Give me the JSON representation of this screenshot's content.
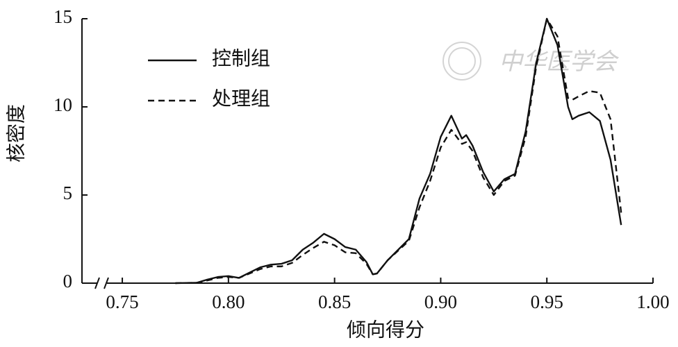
{
  "chart_data": {
    "type": "line",
    "watermark": "中华医学会",
    "x_label": "倾向得分",
    "y_label": "核密度",
    "x": [
      0.775,
      0.785,
      0.79,
      0.795,
      0.8,
      0.805,
      0.81,
      0.815,
      0.82,
      0.825,
      0.83,
      0.835,
      0.84,
      0.845,
      0.85,
      0.855,
      0.86,
      0.865,
      0.868,
      0.87,
      0.875,
      0.88,
      0.885,
      0.89,
      0.895,
      0.9,
      0.905,
      0.91,
      0.912,
      0.915,
      0.92,
      0.925,
      0.93,
      0.935,
      0.94,
      0.945,
      0.95,
      0.955,
      0.96,
      0.962,
      0.965,
      0.97,
      0.975,
      0.98,
      0.985
    ],
    "series": [
      {
        "name": "控制组",
        "color": "#111111",
        "dash": "solid",
        "values": [
          0,
          0.02,
          0.2,
          0.35,
          0.4,
          0.3,
          0.6,
          0.9,
          1.05,
          1.1,
          1.3,
          1.9,
          2.3,
          2.8,
          2.5,
          2.05,
          1.9,
          1.2,
          0.5,
          0.55,
          1.3,
          1.9,
          2.5,
          4.8,
          6.2,
          8.3,
          9.5,
          8.2,
          8.4,
          7.8,
          6.3,
          5.2,
          5.9,
          6.2,
          8.6,
          12.5,
          15.0,
          13.5,
          10.0,
          9.3,
          9.5,
          9.7,
          9.2,
          7.0,
          3.3
        ]
      },
      {
        "name": "处理组",
        "color": "#111111",
        "dash": "dashed",
        "values": [
          0,
          0.02,
          0.15,
          0.3,
          0.35,
          0.3,
          0.55,
          0.8,
          0.95,
          0.95,
          1.15,
          1.6,
          2.0,
          2.35,
          2.15,
          1.75,
          1.7,
          1.1,
          0.5,
          0.55,
          1.3,
          1.85,
          2.4,
          4.3,
          5.8,
          7.7,
          8.7,
          7.9,
          8.0,
          7.5,
          6.0,
          5.0,
          5.8,
          6.1,
          8.3,
          12.3,
          15.0,
          14.0,
          10.5,
          10.4,
          10.6,
          10.9,
          10.8,
          9.3,
          4.0
        ]
      }
    ],
    "xlim": [
      0.731,
      1.0
    ],
    "xticks": [
      0.75,
      {
        "value": 0.8,
        "label": "0.80"
      },
      0.85,
      {
        "value": 0.9,
        "label": "0.90"
      },
      0.95,
      {
        "value": 1.0,
        "label": "1.00"
      }
    ],
    "ylim": [
      0,
      15
    ],
    "yticks": [
      0,
      5,
      10,
      15
    ],
    "legend": "upper-left"
  }
}
